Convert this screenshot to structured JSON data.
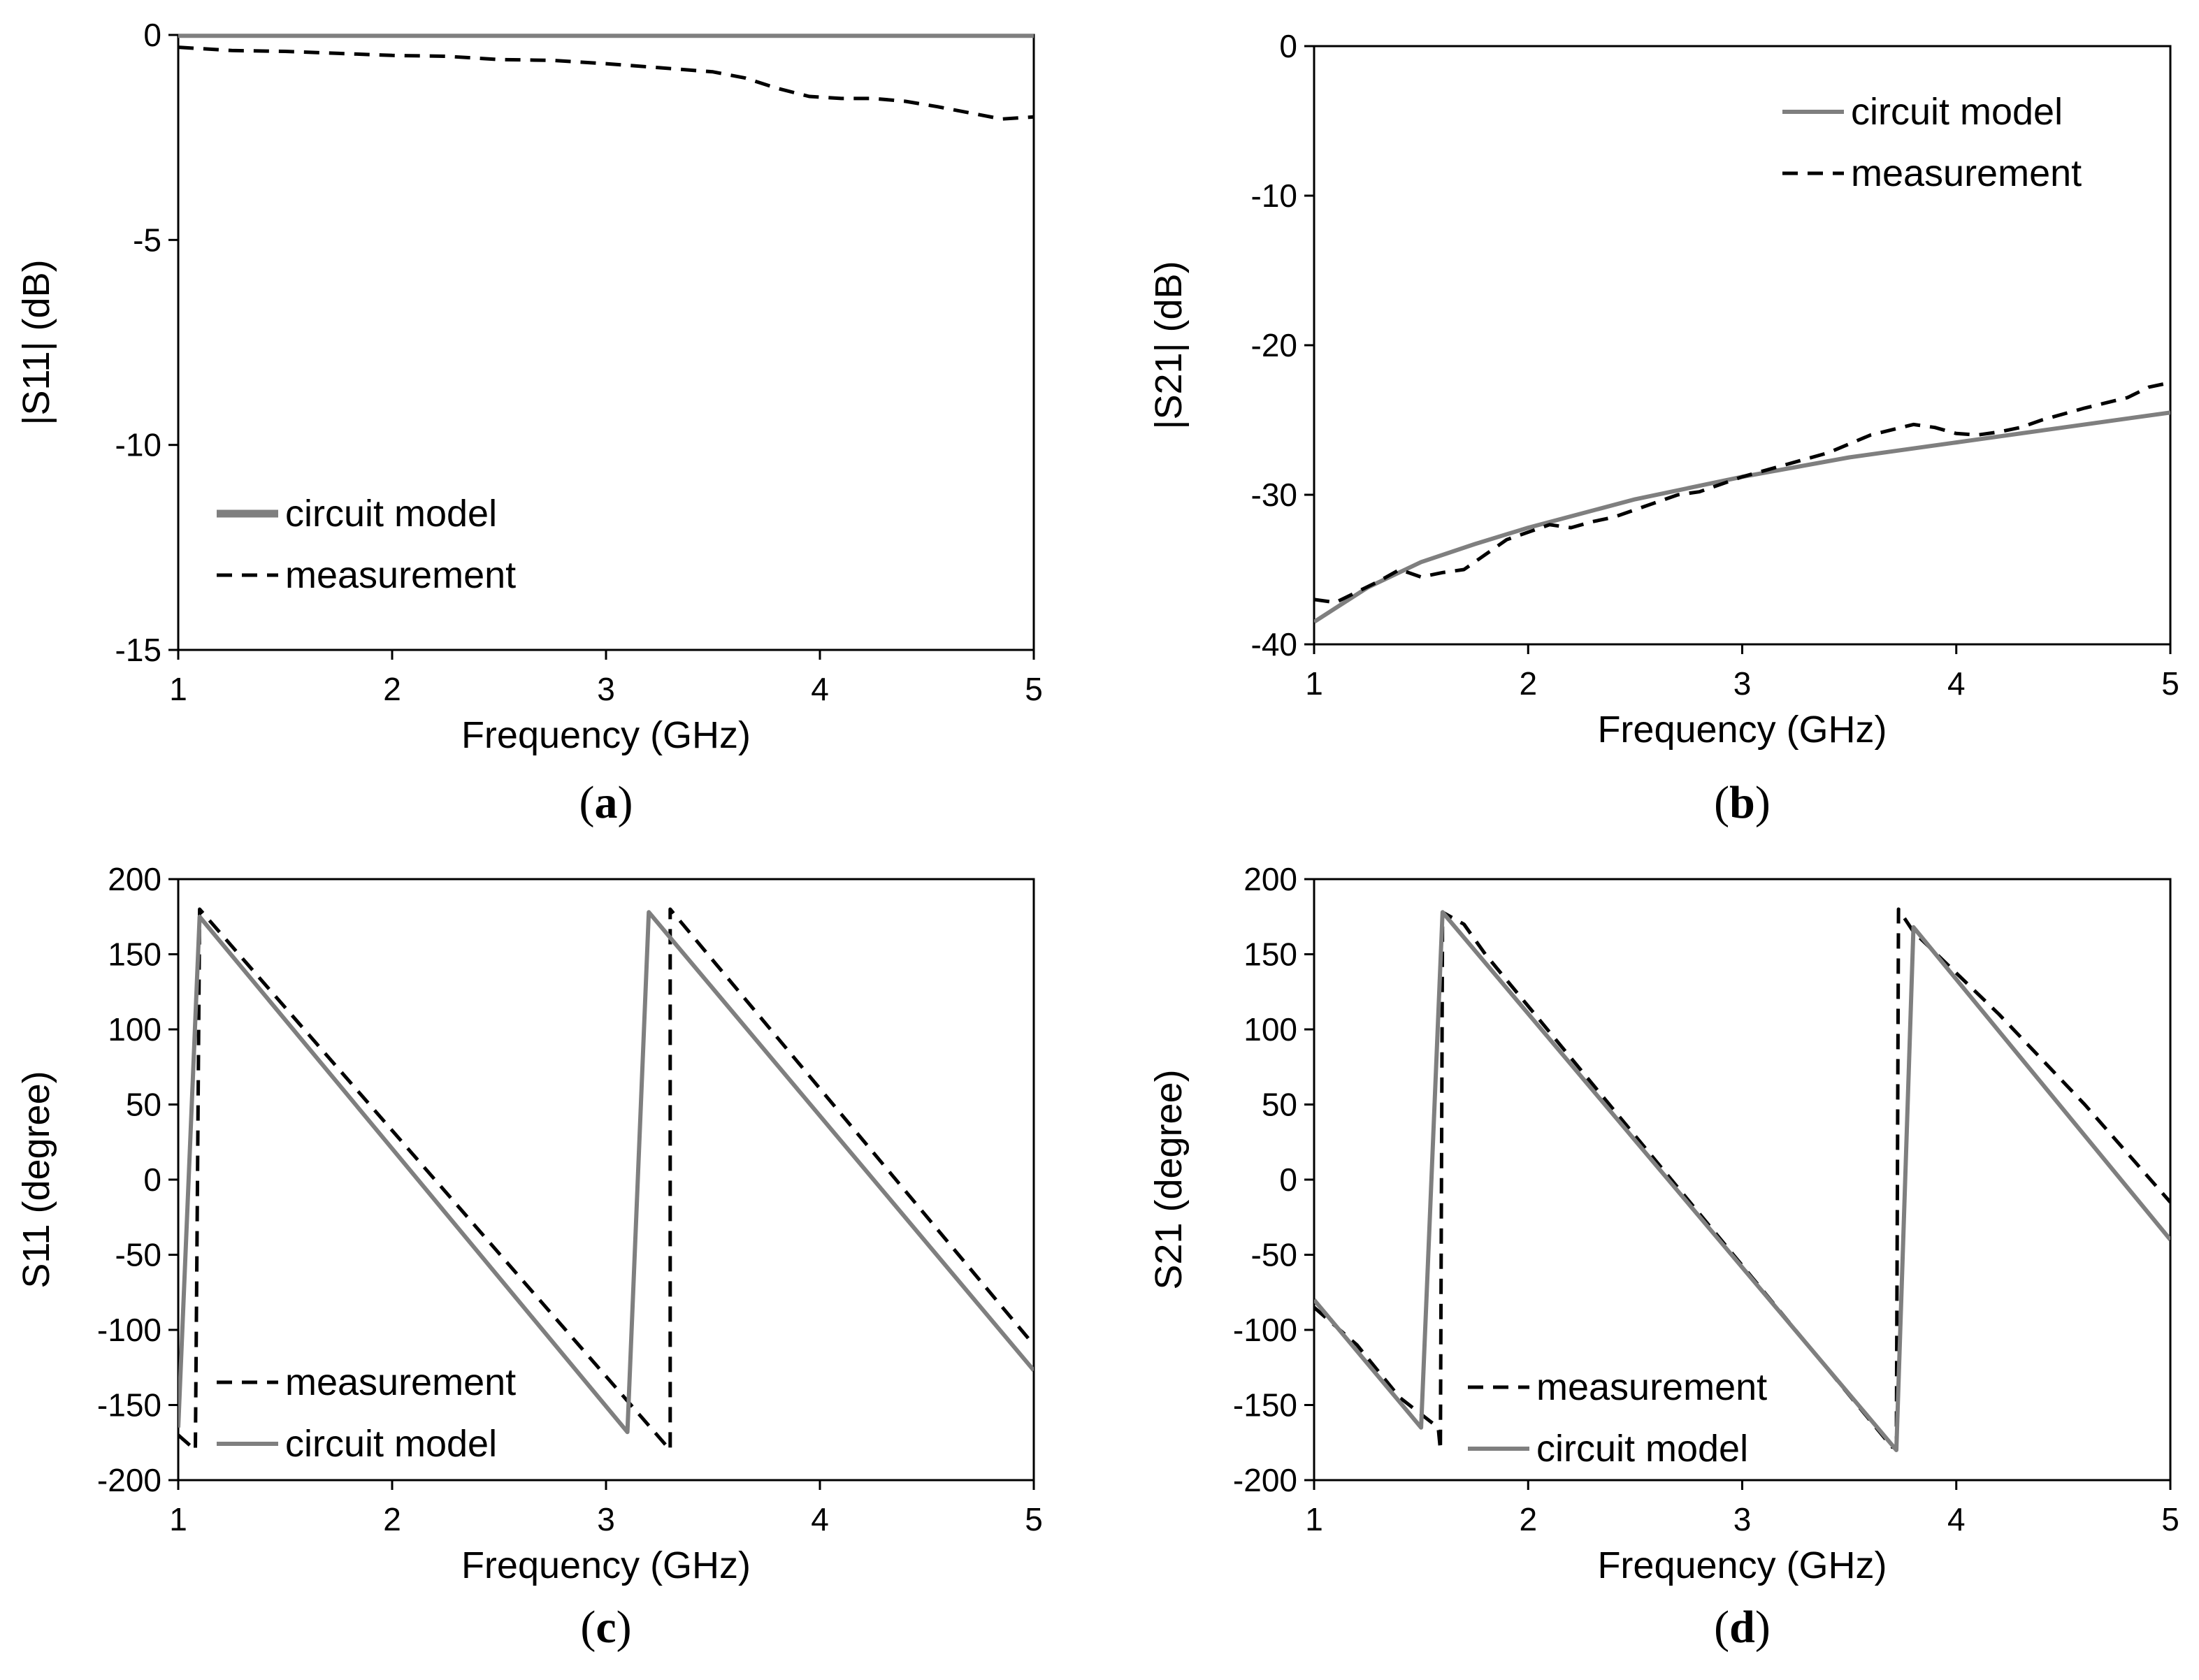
{
  "chart_data": [
    {
      "id": "a",
      "type": "line",
      "panel_label": "a",
      "xlabel": "Frequency (GHz)",
      "ylabel": "|S11|  (dB)",
      "xlim": [
        1,
        5
      ],
      "ylim": [
        -15,
        0
      ],
      "xticks": [
        1,
        2,
        3,
        4,
        5
      ],
      "yticks": [
        0,
        -5,
        -10,
        -15
      ],
      "grid": false,
      "legend_position": "bottom-left",
      "series": [
        {
          "name": "circuit model",
          "style": "solid",
          "color": "#7f7f7f",
          "x": [
            1,
            5
          ],
          "y": [
            -0.02,
            -0.02
          ]
        },
        {
          "name": "measurement",
          "style": "dashed",
          "color": "#000000",
          "x": [
            1.0,
            1.25,
            1.5,
            1.75,
            2.0,
            2.25,
            2.5,
            2.75,
            3.0,
            3.25,
            3.5,
            3.65,
            3.8,
            3.95,
            4.1,
            4.25,
            4.4,
            4.55,
            4.7,
            4.85,
            5.0
          ],
          "y": [
            -0.3,
            -0.38,
            -0.4,
            -0.45,
            -0.5,
            -0.52,
            -0.6,
            -0.62,
            -0.7,
            -0.8,
            -0.9,
            -1.05,
            -1.3,
            -1.5,
            -1.55,
            -1.55,
            -1.62,
            -1.75,
            -1.9,
            -2.05,
            -2.0
          ]
        }
      ]
    },
    {
      "id": "b",
      "type": "line",
      "panel_label": "b",
      "xlabel": "Frequency (GHz)",
      "ylabel": "|S21|  (dB)",
      "xlim": [
        1,
        5
      ],
      "ylim": [
        -40,
        0
      ],
      "xticks": [
        1,
        2,
        3,
        4,
        5
      ],
      "yticks": [
        0,
        -10,
        -20,
        -30,
        -40
      ],
      "grid": false,
      "legend_position": "top-right",
      "series": [
        {
          "name": "circuit model",
          "style": "solid",
          "color": "#7f7f7f",
          "x": [
            1.0,
            1.25,
            1.5,
            1.75,
            2.0,
            2.5,
            3.0,
            3.5,
            4.0,
            4.5,
            5.0
          ],
          "y": [
            -38.5,
            -36.2,
            -34.5,
            -33.3,
            -32.2,
            -30.3,
            -28.8,
            -27.5,
            -26.5,
            -25.5,
            -24.5
          ]
        },
        {
          "name": "measurement",
          "style": "dashed",
          "color": "#000000",
          "x": [
            1.0,
            1.1,
            1.2,
            1.3,
            1.4,
            1.5,
            1.6,
            1.7,
            1.8,
            1.9,
            2.0,
            2.1,
            2.2,
            2.3,
            2.4,
            2.5,
            2.6,
            2.7,
            2.8,
            2.9,
            3.0,
            3.2,
            3.4,
            3.6,
            3.8,
            3.9,
            4.0,
            4.1,
            4.2,
            4.3,
            4.4,
            4.6,
            4.8,
            4.9,
            5.0
          ],
          "y": [
            -37.0,
            -37.2,
            -36.5,
            -35.8,
            -35.0,
            -35.5,
            -35.2,
            -35.0,
            -34.0,
            -33.0,
            -32.5,
            -32.0,
            -32.2,
            -31.8,
            -31.5,
            -31.0,
            -30.5,
            -30.0,
            -29.8,
            -29.3,
            -28.8,
            -28.0,
            -27.2,
            -26.0,
            -25.3,
            -25.5,
            -25.9,
            -26.0,
            -25.8,
            -25.5,
            -25.0,
            -24.2,
            -23.5,
            -22.8,
            -22.5
          ]
        }
      ]
    },
    {
      "id": "c",
      "type": "line",
      "panel_label": "c",
      "xlabel": "Frequency (GHz)",
      "ylabel": "S11  (degree)",
      "xlim": [
        1,
        5
      ],
      "ylim": [
        -200,
        200
      ],
      "xticks": [
        1,
        2,
        3,
        4,
        5
      ],
      "yticks": [
        200,
        150,
        100,
        50,
        0,
        -50,
        -100,
        -150,
        -200
      ],
      "grid": false,
      "legend_position": "bottom-left",
      "series": [
        {
          "name": "measurement",
          "style": "dashed",
          "color": "#000000",
          "x": [
            1.0,
            1.08,
            1.1,
            3.3,
            3.3,
            5.0
          ],
          "y": [
            -170,
            -180,
            180,
            -180,
            180,
            -110
          ]
        },
        {
          "name": "circuit model",
          "style": "solid",
          "color": "#7f7f7f",
          "x": [
            1.0,
            1.1,
            3.1,
            3.2,
            5.0
          ],
          "y": [
            -165,
            175,
            -168,
            178,
            -127
          ]
        }
      ]
    },
    {
      "id": "d",
      "type": "line",
      "panel_label": "d",
      "xlabel": "Frequency (GHz)",
      "ylabel": "S21  (degree)",
      "xlim": [
        1,
        5
      ],
      "ylim": [
        -200,
        200
      ],
      "xticks": [
        1,
        2,
        3,
        4,
        5
      ],
      "yticks": [
        200,
        150,
        100,
        50,
        0,
        -50,
        -100,
        -150,
        -200
      ],
      "grid": false,
      "legend_position": "bottom-left",
      "series": [
        {
          "name": "measurement",
          "style": "dashed",
          "color": "#000000",
          "x": [
            1.0,
            1.2,
            1.4,
            1.58,
            1.59,
            1.6,
            1.7,
            1.8,
            3.7,
            3.72,
            3.73,
            3.8,
            4.2,
            4.6,
            5.0
          ],
          "y": [
            -85,
            -110,
            -145,
            -165,
            -180,
            178,
            170,
            150,
            -178,
            -178,
            180,
            165,
            110,
            50,
            -15
          ]
        },
        {
          "name": "circuit model",
          "style": "solid",
          "color": "#7f7f7f",
          "x": [
            1.0,
            1.5,
            1.6,
            3.72,
            3.8,
            5.0
          ],
          "y": [
            -80,
            -165,
            178,
            -180,
            168,
            -40
          ]
        }
      ]
    }
  ]
}
